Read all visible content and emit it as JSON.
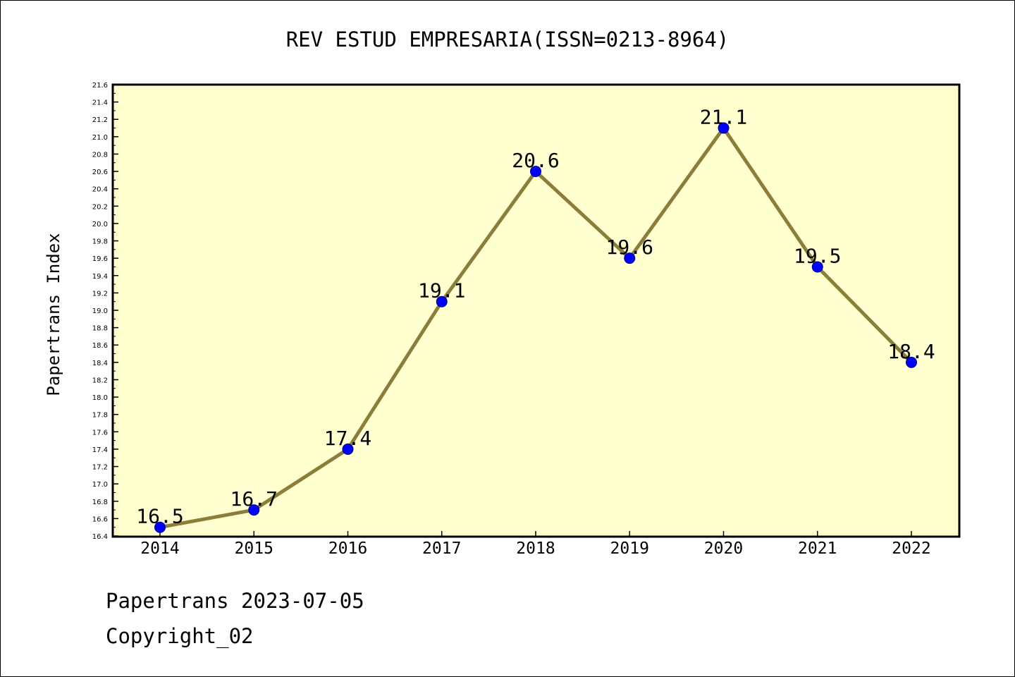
{
  "chart_data": {
    "type": "line",
    "title": "REV ESTUD EMPRESARIA(ISSN=0213-8964)",
    "xlabel": "",
    "ylabel": "Papertrans Index",
    "categories": [
      "2014",
      "2015",
      "2016",
      "2017",
      "2018",
      "2019",
      "2020",
      "2021",
      "2022"
    ],
    "values": [
      16.5,
      16.7,
      17.4,
      19.1,
      20.6,
      19.6,
      21.1,
      19.5,
      18.4
    ],
    "data_labels": [
      "16.5",
      "16.7",
      "17.4",
      "19.1",
      "20.6",
      "19.6",
      "21.1",
      "19.5",
      "18.4"
    ],
    "ylim": [
      16.4,
      21.6
    ],
    "y_ticks": [
      "16.4",
      "16.6",
      "16.8",
      "17.0",
      "17.2",
      "17.4",
      "17.6",
      "17.8",
      "18.0",
      "18.2",
      "18.4",
      "18.6",
      "18.8",
      "19.0",
      "19.2",
      "19.4",
      "19.6",
      "19.8",
      "20.0",
      "20.2",
      "20.4",
      "20.6",
      "20.8",
      "21.0",
      "21.2",
      "21.4",
      "21.6"
    ],
    "grid": false,
    "colors": {
      "plot_background": "#ffffd0",
      "line": "#8b7d3a",
      "marker": "#0000ff",
      "marker_edge": "#00008b"
    }
  },
  "footer": {
    "date_line": "Papertrans 2023-07-05",
    "copyright": "Copyright_02"
  }
}
